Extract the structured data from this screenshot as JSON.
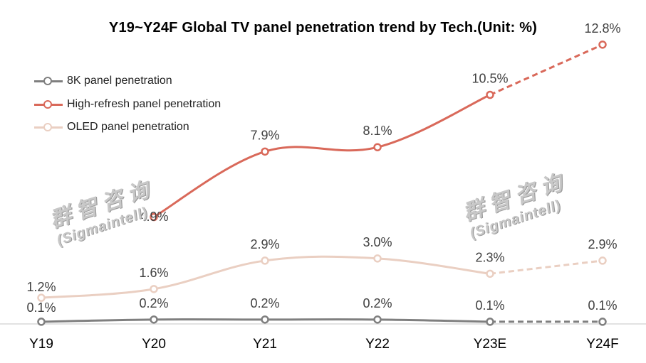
{
  "title": "Y19~Y24F Global TV panel penetration trend by Tech.(Unit: %)",
  "watermark": {
    "cn": "群智咨询",
    "en": "(Sigmaintell)"
  },
  "chart_data": {
    "type": "line",
    "categories": [
      "Y19",
      "Y20",
      "Y21",
      "Y22",
      "Y23E",
      "Y24F"
    ],
    "ylim": [
      0,
      14
    ],
    "grid": false,
    "legend_position": "top-left",
    "forecast_segment_dashed": [
      "Y23E",
      "Y24F"
    ],
    "series": [
      {
        "name": "8K panel penetration",
        "color": "#7f7f7f",
        "values": [
          0.1,
          0.2,
          0.2,
          0.2,
          0.1,
          0.1
        ],
        "labels": [
          "0.1%",
          "0.2%",
          "0.2%",
          "0.2%",
          "0.1%",
          "0.1%"
        ]
      },
      {
        "name": "High-refresh panel penetration",
        "color": "#d9695a",
        "values": [
          null,
          4.9,
          7.9,
          8.1,
          10.5,
          12.8
        ],
        "labels": [
          null,
          "4.9%",
          "7.9%",
          "8.1%",
          "10.5%",
          "12.8%"
        ]
      },
      {
        "name": "OLED panel penetration",
        "color": "#eacfc2",
        "values": [
          1.2,
          1.6,
          2.9,
          3.0,
          2.3,
          2.9
        ],
        "labels": [
          "1.2%",
          "1.6%",
          "2.9%",
          "3.0%",
          "2.3%",
          "2.9%"
        ]
      }
    ]
  }
}
